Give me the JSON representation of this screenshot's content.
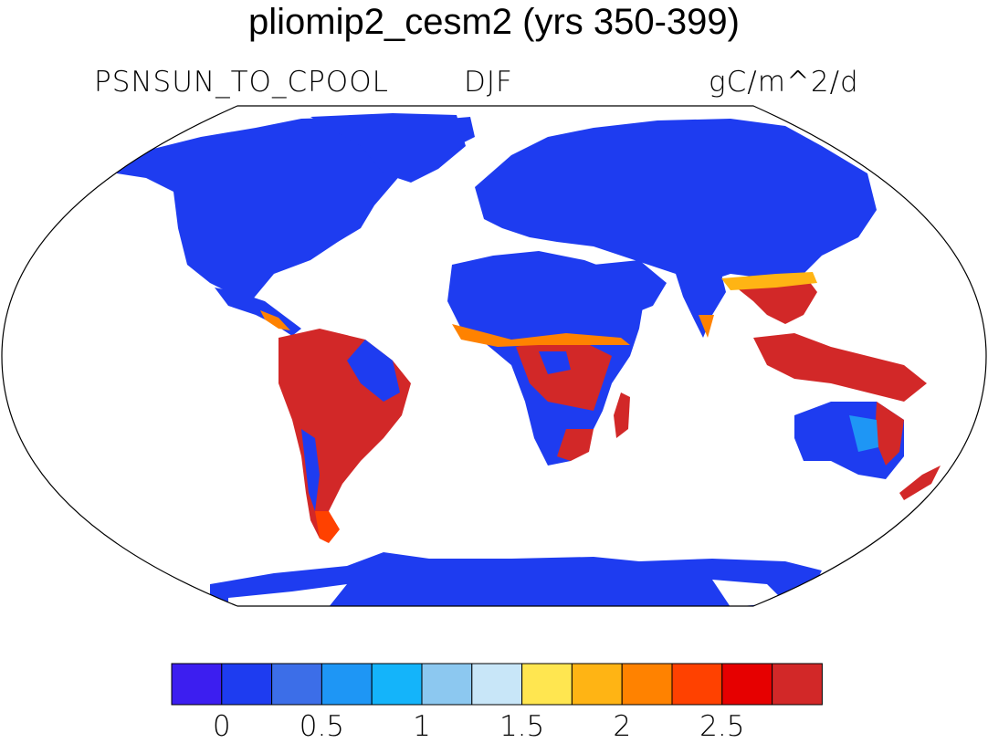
{
  "title": "pliomip2_cesm2 (yrs 350-399)",
  "variable": "PSNSUN_TO_CPOOL",
  "season": "DJF",
  "units": "gC/m^2/d",
  "colorbar": {
    "colors": [
      "#3c1ef0",
      "#1e3cf0",
      "#3c6ee8",
      "#1e96f5",
      "#14b4fa",
      "#8cc8f0",
      "#c8e6f8",
      "#ffe650",
      "#ffb414",
      "#ff8200",
      "#ff4100",
      "#e60000",
      "#d22828"
    ],
    "tick_labels": [
      "0",
      "0.5",
      "1",
      "1.5",
      "2",
      "2.5"
    ]
  },
  "map": {
    "projection": "Robinson",
    "ocean_color": "#ffffff",
    "land_low_color": "#1e3cf0",
    "tropics_high_color": "#d22828"
  }
}
